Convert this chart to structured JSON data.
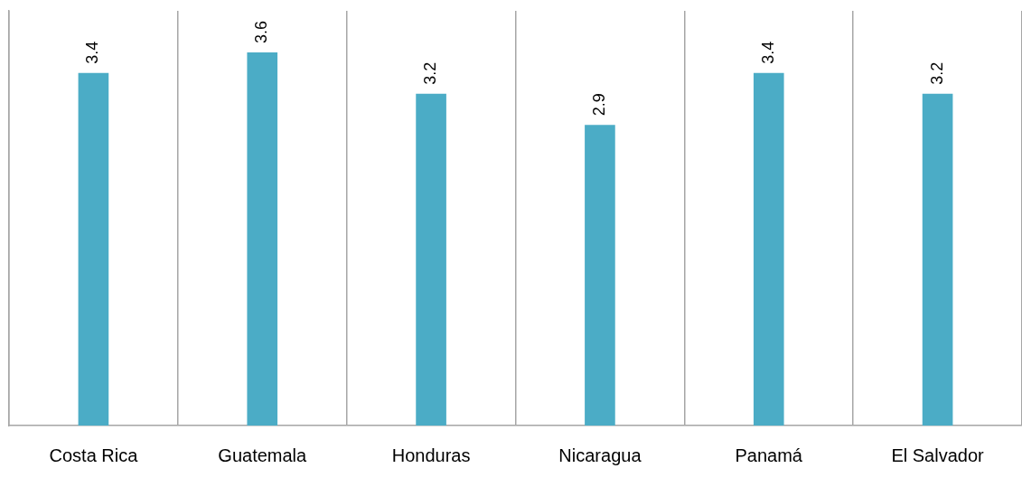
{
  "chart_data": {
    "type": "bar",
    "categories": [
      "Costa Rica",
      "Guatemala",
      "Honduras",
      "Nicaragua",
      "Panamá",
      "El Salvador"
    ],
    "values": [
      3.4,
      3.6,
      3.2,
      2.9,
      3.4,
      3.2
    ],
    "color": "#4bacc6",
    "data_labels": true,
    "grid": "x",
    "legend": false,
    "tick_labels": "x"
  }
}
